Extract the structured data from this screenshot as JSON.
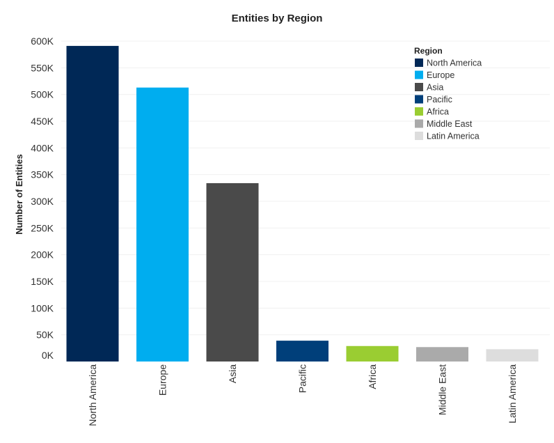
{
  "chart_data": {
    "type": "bar",
    "title": "Entities by Region",
    "xlabel": "",
    "ylabel": "Number of Entities",
    "ylim": [
      0,
      600000
    ],
    "yticks": [
      {
        "value": 0,
        "label": "0K"
      },
      {
        "value": 50000,
        "label": "50K"
      },
      {
        "value": 100000,
        "label": "100K"
      },
      {
        "value": 150000,
        "label": "150K"
      },
      {
        "value": 200000,
        "label": "200K"
      },
      {
        "value": 250000,
        "label": "250K"
      },
      {
        "value": 300000,
        "label": "300K"
      },
      {
        "value": 350000,
        "label": "350K"
      },
      {
        "value": 400000,
        "label": "400K"
      },
      {
        "value": 450000,
        "label": "450K"
      },
      {
        "value": 500000,
        "label": "500K"
      },
      {
        "value": 550000,
        "label": "550K"
      },
      {
        "value": 600000,
        "label": "600K"
      }
    ],
    "categories": [
      "North America",
      "Europe",
      "Asia",
      "Pacific",
      "Africa",
      "Middle East",
      "Latin America"
    ],
    "values": [
      591000,
      513000,
      334000,
      39000,
      29000,
      27000,
      23000
    ],
    "colors": [
      "#002856",
      "#00adef",
      "#4a4a4a",
      "#003f7a",
      "#9acd32",
      "#aaaaaa",
      "#dddddd"
    ],
    "grid": true,
    "legend": {
      "title": "Region",
      "placement": "top-right",
      "entries": [
        "North America",
        "Europe",
        "Asia",
        "Pacific",
        "Africa",
        "Middle East",
        "Latin America"
      ]
    }
  }
}
